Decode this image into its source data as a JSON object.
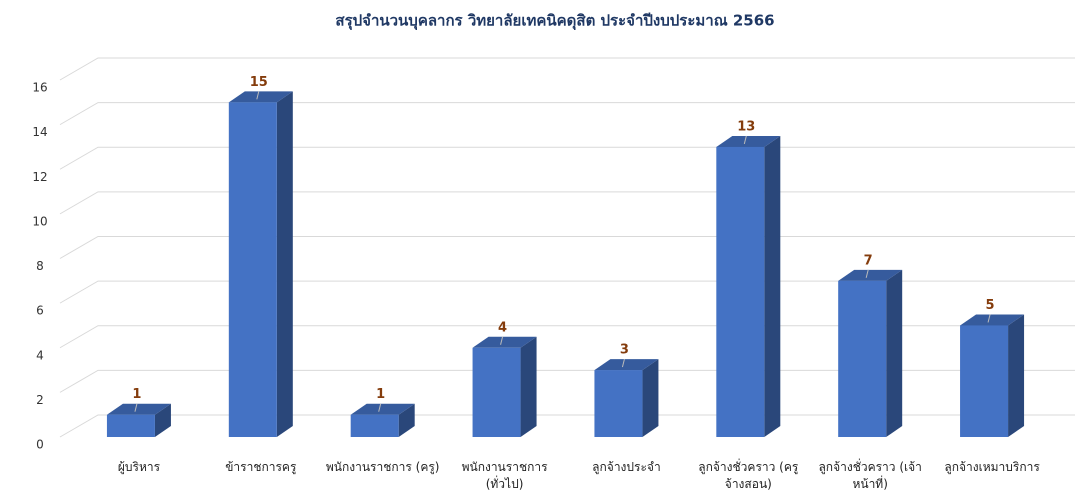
{
  "chart_data": {
    "type": "bar3d",
    "title": "สรุปจำนวนบุคลากร วิทยาลัยเทคนิคดุสิต ประจำปีงบประมาณ 2566",
    "categories": [
      "ผู้บริหาร",
      "ข้าราชการครู",
      "พนักงานราชการ (ครู)",
      "พนักงานราชการ (ทั่วไป)",
      "ลูกจ้างประจำ",
      "ลูกจ้างชั่วคราว (ครูจ้างสอน)",
      "ลูกจ้างชั่วคราว (เจ้าหน้าที่)",
      "ลูกจ้างเหมาบริการ"
    ],
    "values": [
      1,
      15,
      1,
      4,
      3,
      13,
      7,
      5
    ],
    "color": "#4472c4",
    "ylim": [
      0,
      16
    ],
    "yticks": [
      0,
      2,
      4,
      6,
      8,
      10,
      12,
      14,
      16
    ],
    "grid": true
  }
}
